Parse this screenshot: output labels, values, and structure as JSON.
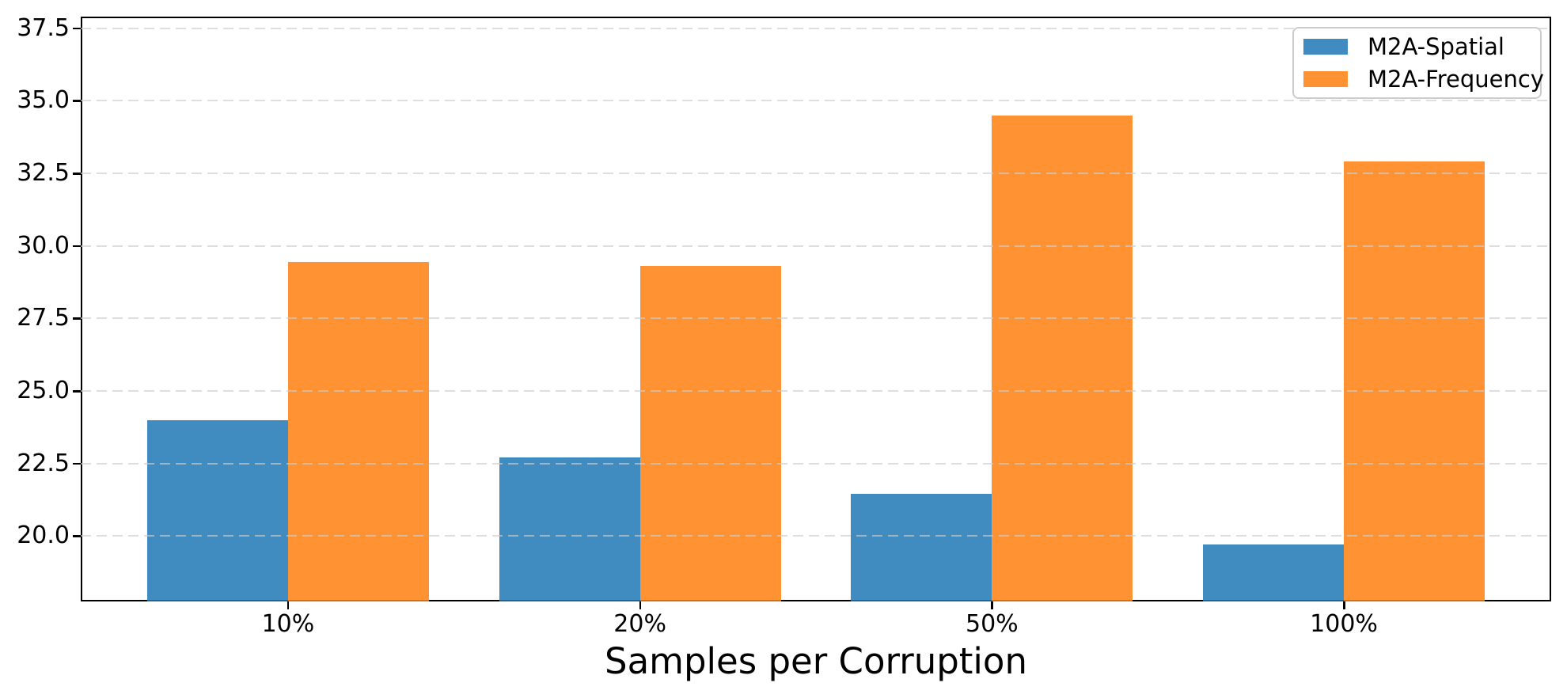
{
  "chart_data": {
    "type": "bar",
    "categories": [
      "10%",
      "20%",
      "50%",
      "100%"
    ],
    "series": [
      {
        "name": "M2A-Spatial",
        "color": "#1f77b4",
        "values": [
          24.0,
          22.7,
          21.45,
          19.7
        ]
      },
      {
        "name": "M2A-Frequency",
        "color": "#ff7f0e",
        "values": [
          29.45,
          29.3,
          34.5,
          32.9
        ]
      }
    ],
    "title": "",
    "xlabel": "Samples per Corruption",
    "ylabel": "",
    "ylim": [
      17.75,
      37.9
    ],
    "yticks": [
      20.0,
      22.5,
      25.0,
      27.5,
      30.0,
      32.5,
      35.0,
      37.5
    ],
    "ytick_labels": [
      "20.0",
      "22.5",
      "25.0",
      "27.5",
      "30.0",
      "32.5",
      "35.0",
      "37.5"
    ],
    "bar_alpha": 0.85,
    "grid": "horizontal-dashed",
    "grid_on_top": true,
    "legend_position": "upper right"
  }
}
